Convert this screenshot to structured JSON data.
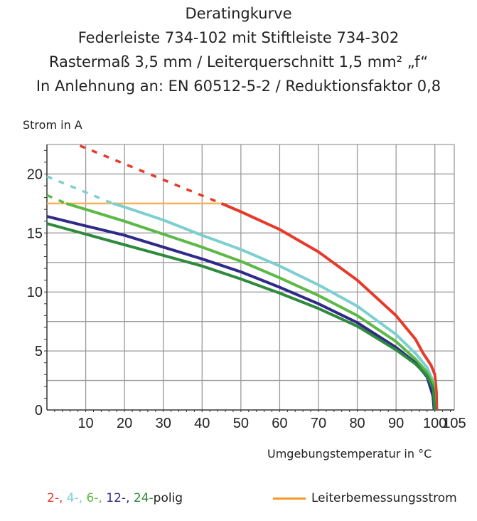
{
  "chart_data": {
    "type": "line",
    "title": [
      "Deratingkurve",
      "Federleiste 734-102 mit Stiftleiste 734-302",
      "Rastermaß 3,5 mm / Leiterquerschnitt 1,5 mm² „f“",
      "In Anlehnung an: EN 60512-5-2 / Reduktionsfaktor 0,8"
    ],
    "ylabel": "Strom in A",
    "xlabel": "Umgebungstemperatur in  °C",
    "xlim": [
      0,
      105
    ],
    "ylim": [
      0,
      22.5
    ],
    "xticks": [
      10,
      20,
      30,
      40,
      50,
      60,
      70,
      80,
      90,
      100,
      105
    ],
    "yticks": [
      0,
      5,
      10,
      15,
      20
    ],
    "grid": true,
    "series": [
      {
        "name": "2-",
        "color": "#e63a2a",
        "dashed": [
          [
            8.5,
            22.4
          ],
          [
            45,
            17.5
          ]
        ],
        "values": [
          [
            45,
            17.5
          ],
          [
            50,
            16.8
          ],
          [
            60,
            15.3
          ],
          [
            70,
            13.4
          ],
          [
            80,
            11.0
          ],
          [
            90,
            8.0
          ],
          [
            95,
            6.0
          ],
          [
            97,
            4.8
          ],
          [
            99,
            3.8
          ],
          [
            100,
            3.0
          ],
          [
            100.4,
            1.5
          ],
          [
            100.5,
            0
          ]
        ]
      },
      {
        "name": "4-",
        "color": "#7ecfd0",
        "dashed": [
          [
            0,
            19.8
          ],
          [
            17,
            17.5
          ]
        ],
        "values": [
          [
            17,
            17.5
          ],
          [
            20,
            17.2
          ],
          [
            30,
            16.1
          ],
          [
            40,
            14.8
          ],
          [
            50,
            13.6
          ],
          [
            60,
            12.2
          ],
          [
            70,
            10.6
          ],
          [
            80,
            8.8
          ],
          [
            90,
            6.4
          ],
          [
            95,
            4.8
          ],
          [
            98,
            3.6
          ],
          [
            99.6,
            2.4
          ],
          [
            100,
            0
          ]
        ]
      },
      {
        "name": "6-",
        "color": "#5db947",
        "dashed": [
          [
            0,
            18.2
          ],
          [
            5,
            17.5
          ]
        ],
        "values": [
          [
            5,
            17.5
          ],
          [
            10,
            17.0
          ],
          [
            20,
            16.0
          ],
          [
            30,
            14.9
          ],
          [
            40,
            13.8
          ],
          [
            50,
            12.6
          ],
          [
            60,
            11.2
          ],
          [
            70,
            9.7
          ],
          [
            80,
            8.0
          ],
          [
            90,
            5.8
          ],
          [
            95,
            4.3
          ],
          [
            98,
            3.2
          ],
          [
            99.6,
            2.2
          ],
          [
            100,
            0
          ]
        ]
      },
      {
        "name": "12-",
        "color": "#2f2a88",
        "values": [
          [
            0,
            16.4
          ],
          [
            10,
            15.6
          ],
          [
            20,
            14.8
          ],
          [
            30,
            13.8
          ],
          [
            40,
            12.8
          ],
          [
            50,
            11.7
          ],
          [
            60,
            10.4
          ],
          [
            70,
            9.0
          ],
          [
            80,
            7.4
          ],
          [
            90,
            5.3
          ],
          [
            95,
            4.0
          ],
          [
            98,
            2.8
          ],
          [
            99.5,
            1.2
          ],
          [
            99.8,
            0
          ]
        ]
      },
      {
        "name": "24-",
        "color": "#2e8a3c",
        "values": [
          [
            0,
            15.8
          ],
          [
            10,
            14.9
          ],
          [
            20,
            14.0
          ],
          [
            30,
            13.1
          ],
          [
            40,
            12.2
          ],
          [
            50,
            11.1
          ],
          [
            60,
            9.9
          ],
          [
            70,
            8.6
          ],
          [
            80,
            7.1
          ],
          [
            90,
            5.1
          ],
          [
            95,
            3.9
          ],
          [
            98,
            2.9
          ],
          [
            99.6,
            1.8
          ],
          [
            100,
            0
          ]
        ]
      }
    ],
    "reference": {
      "name": "Leiterbemessungsstrom",
      "color": "#f5b25a",
      "legend_color": "#f39a2b",
      "values": [
        [
          0,
          17.5
        ],
        [
          45,
          17.5
        ]
      ]
    },
    "legend": {
      "series_suffix": "polig",
      "separator": ", ",
      "placement": "bottom"
    }
  }
}
